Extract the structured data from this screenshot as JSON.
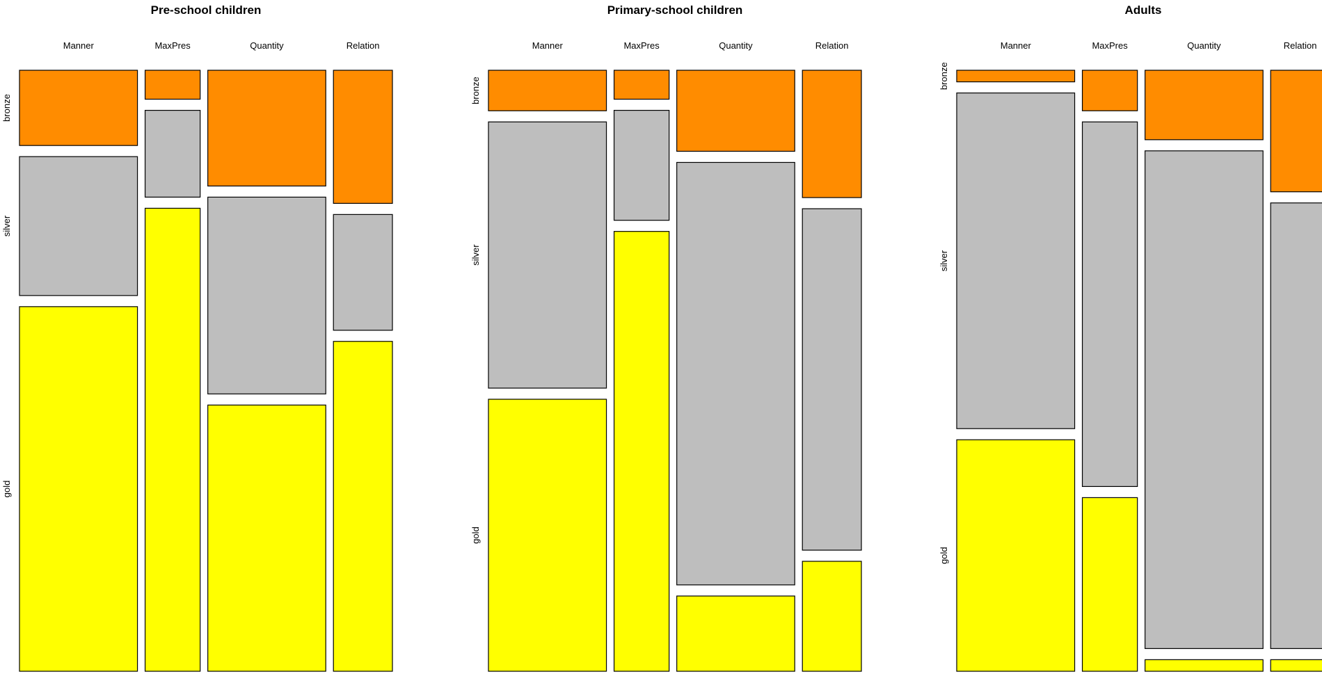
{
  "chart_data": [
    {
      "type": "mosaic",
      "title": "Pre-school children",
      "categories": [
        "Manner",
        "MaxPres",
        "Quantity",
        "Relation"
      ],
      "column_widths": [
        0.3,
        0.14,
        0.3,
        0.15
      ],
      "levels": [
        "bronze",
        "silver",
        "gold"
      ],
      "proportions": {
        "bronze": [
          0.13,
          0.05,
          0.2,
          0.23
        ],
        "silver": [
          0.24,
          0.15,
          0.34,
          0.2
        ],
        "gold": [
          0.63,
          0.8,
          0.46,
          0.57
        ]
      }
    },
    {
      "type": "mosaic",
      "title": "Primary-school children",
      "categories": [
        "Manner",
        "MaxPres",
        "Quantity",
        "Relation"
      ],
      "column_widths": [
        0.3,
        0.14,
        0.3,
        0.15
      ],
      "levels": [
        "bronze",
        "silver",
        "gold"
      ],
      "proportions": {
        "bronze": [
          0.07,
          0.05,
          0.14,
          0.22
        ],
        "silver": [
          0.46,
          0.19,
          0.73,
          0.59
        ],
        "gold": [
          0.47,
          0.76,
          0.13,
          0.19
        ]
      }
    },
    {
      "type": "mosaic",
      "title": "Adults",
      "categories": [
        "Manner",
        "MaxPres",
        "Quantity",
        "Relation"
      ],
      "column_widths": [
        0.3,
        0.14,
        0.3,
        0.15
      ],
      "levels": [
        "bronze",
        "silver",
        "gold"
      ],
      "proportions": {
        "bronze": [
          0.02,
          0.07,
          0.12,
          0.21
        ],
        "silver": [
          0.58,
          0.63,
          0.86,
          0.77
        ],
        "gold": [
          0.4,
          0.3,
          0.02,
          0.02
        ]
      }
    }
  ],
  "colors": {
    "bronze": "#ff8c00",
    "silver": "#bebebe",
    "gold": "#ffff00"
  }
}
